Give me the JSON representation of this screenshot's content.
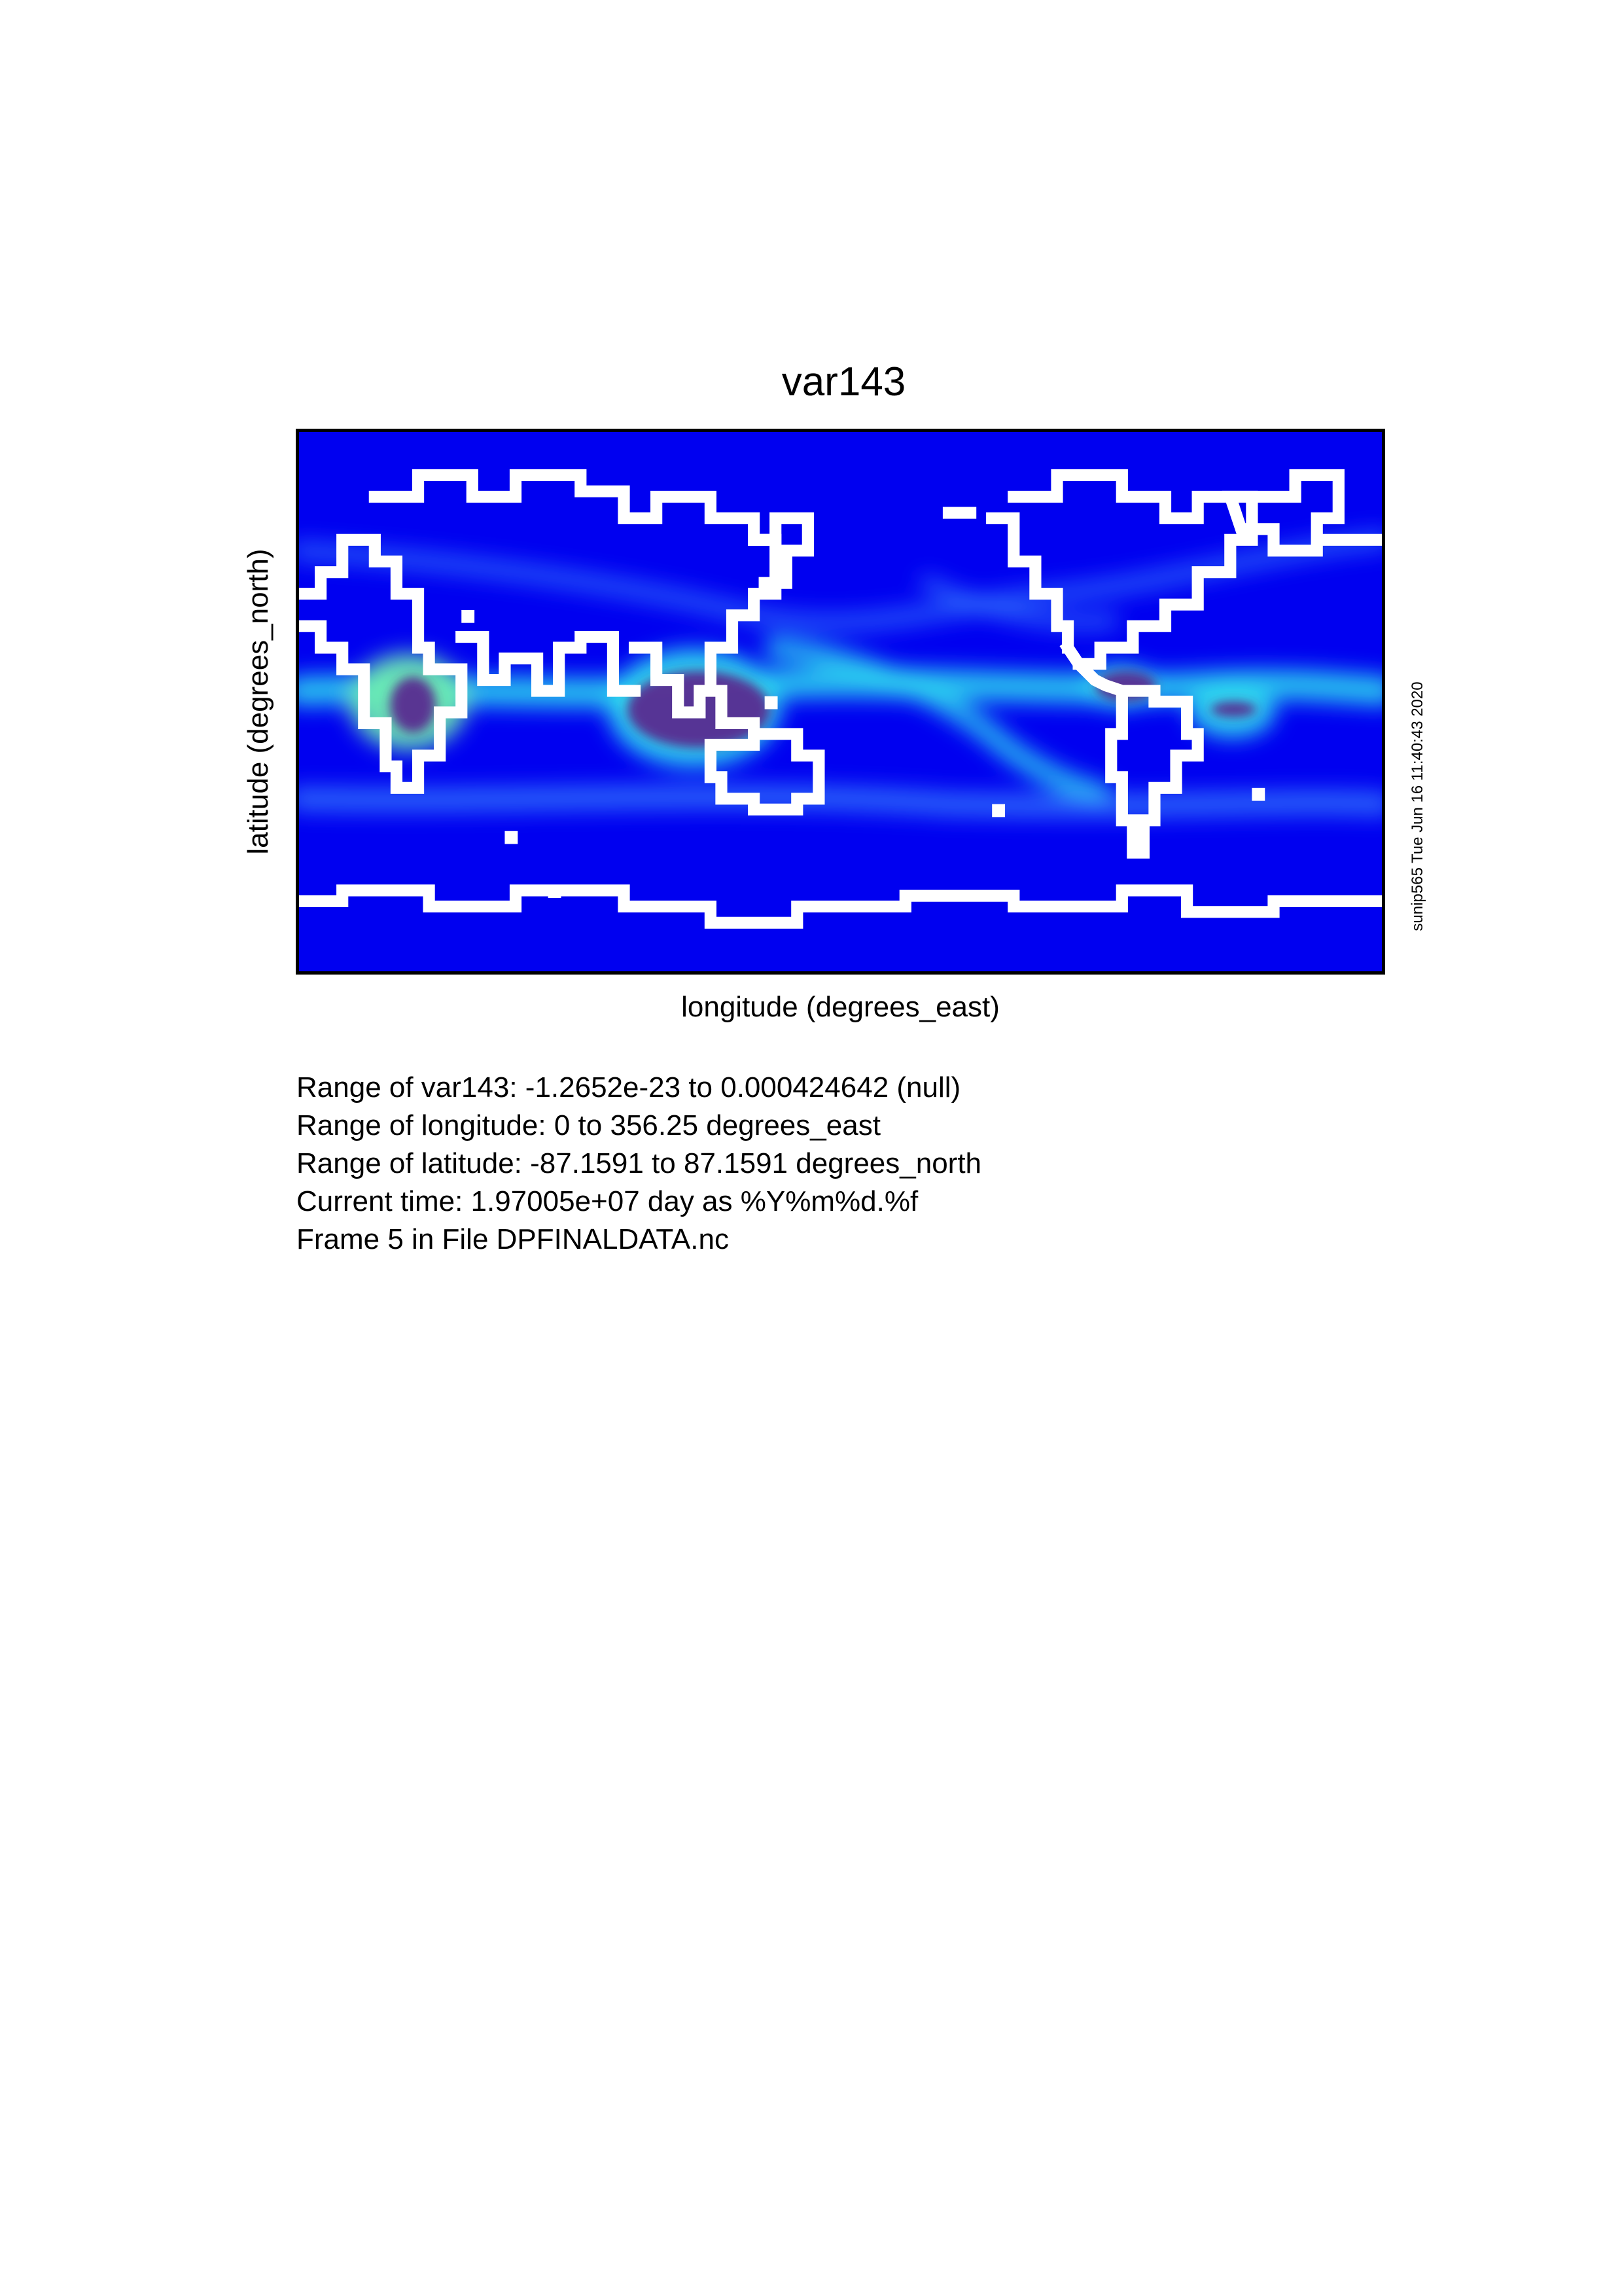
{
  "title": "var143",
  "xlabel": "longitude (degrees_east)",
  "ylabel": "latitude (degrees_north)",
  "stamp": "sunip565 Tue Jun 16 11:40:43 2020",
  "info_lines": [
    "Range of var143: -1.2652e-23 to 0.000424642 (null)",
    "Range of longitude: 0 to 356.25 degrees_east",
    "Range of latitude: -87.1591 to 87.1591 degrees_north",
    "Current time: 1.97005e+07 day as %Y%m%d.%f",
    "Frame 5 in File DPFINALDATA.nc"
  ],
  "colors": {
    "background": "#0000f0",
    "band_light": "#3a8cff",
    "band_cyan": "#30e0f0",
    "band_green": "#70f0b0",
    "high": "#5a2a90",
    "coastline": "#ffffff"
  },
  "chart_data": {
    "type": "heatmap",
    "variable": "var143",
    "xlim": [
      0,
      356.25
    ],
    "ylim": [
      -87.1591,
      87.1591
    ],
    "value_range": [
      -1.2652e-23,
      0.000424642
    ],
    "high_value_regions": [
      {
        "lon": [
          30,
          45
        ],
        "lat": [
          -10,
          8
        ],
        "value": "high"
      },
      {
        "lon": [
          108,
          155
        ],
        "lat": [
          -15,
          10
        ],
        "value": "high"
      },
      {
        "lon": [
          262,
          282
        ],
        "lat": [
          0,
          10
        ],
        "value": "high"
      },
      {
        "lon": [
          300,
          315
        ],
        "lat": [
          -5,
          0
        ],
        "value": "high"
      }
    ]
  }
}
